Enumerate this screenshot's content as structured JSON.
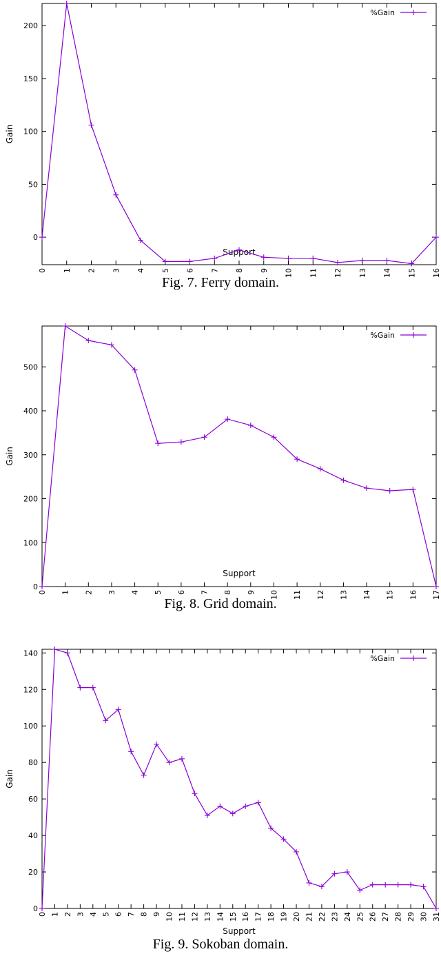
{
  "chart_data": [
    {
      "type": "line",
      "caption": "Fig. 7.  Ferry domain.",
      "xlabel": "Support",
      "ylabel": "Gain",
      "legend": "%Gain",
      "legend_position": "top-right",
      "grid": false,
      "color": "#8a00d4",
      "xlim": [
        0,
        16
      ],
      "ylim": [
        -26,
        221
      ],
      "yticks": [
        0,
        50,
        100,
        150,
        200
      ],
      "series": [
        {
          "name": "%Gain",
          "x": [
            0,
            1,
            2,
            3,
            4,
            5,
            6,
            7,
            8,
            9,
            10,
            11,
            12,
            13,
            14,
            15,
            16
          ],
          "y": [
            0,
            221,
            106,
            40,
            -3,
            -23,
            -23,
            -20,
            -12,
            -19,
            -20,
            -20,
            -24,
            -22,
            -22,
            -25,
            0
          ]
        }
      ]
    },
    {
      "type": "line",
      "caption": "Fig. 8.  Grid domain.",
      "xlabel": "Support",
      "ylabel": "Gain",
      "legend": "%Gain",
      "legend_position": "top-right",
      "grid": false,
      "color": "#8a00d4",
      "xlim": [
        0,
        17
      ],
      "ylim": [
        0,
        593
      ],
      "yticks": [
        0,
        100,
        200,
        300,
        400,
        500
      ],
      "series": [
        {
          "name": "%Gain",
          "x": [
            0,
            1,
            2,
            3,
            4,
            5,
            6,
            7,
            8,
            9,
            10,
            11,
            12,
            13,
            14,
            15,
            16,
            17
          ],
          "y": [
            0,
            593,
            560,
            550,
            493,
            326,
            329,
            340,
            381,
            367,
            340,
            290,
            268,
            242,
            224,
            218,
            221,
            0
          ]
        }
      ]
    },
    {
      "type": "line",
      "caption": "Fig. 9.  Sokoban domain.",
      "xlabel": "Support",
      "ylabel": "Gain",
      "legend": "%Gain",
      "legend_position": "top-right",
      "grid": false,
      "color": "#8a00d4",
      "xlim": [
        0,
        31
      ],
      "ylim": [
        0,
        142
      ],
      "yticks": [
        0,
        20,
        40,
        60,
        80,
        100,
        120,
        140
      ],
      "series": [
        {
          "name": "%Gain",
          "x": [
            0,
            1,
            2,
            3,
            4,
            5,
            6,
            7,
            8,
            9,
            10,
            11,
            12,
            13,
            14,
            15,
            16,
            17,
            18,
            19,
            20,
            21,
            22,
            23,
            24,
            25,
            26,
            27,
            28,
            29,
            30,
            31
          ],
          "y": [
            0,
            142,
            140,
            121,
            121,
            103,
            109,
            86,
            73,
            90,
            80,
            82,
            63,
            51,
            56,
            52,
            56,
            58,
            44,
            38,
            31,
            14,
            12,
            19,
            20,
            10,
            13,
            13,
            13,
            13,
            12,
            0
          ]
        }
      ]
    }
  ]
}
